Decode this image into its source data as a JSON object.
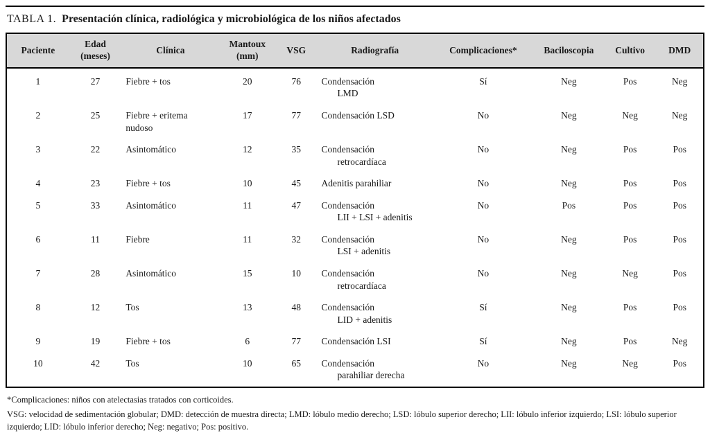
{
  "title": {
    "label": "TABLA 1.",
    "text": "Presentación clínica, radiológica y microbiológica de los niños afectados"
  },
  "table": {
    "columns": [
      "Paciente",
      "Edad\n(meses)",
      "Clínica",
      "Mantoux\n(mm)",
      "VSG",
      "Radiografía",
      "Complicaciones*",
      "Baciloscopia",
      "Cultivo",
      "DMD"
    ],
    "rows": [
      {
        "paciente": "1",
        "edad": "27",
        "clinica": "Fiebre + tos",
        "mantoux": "20",
        "vsg": "76",
        "rx1": "Condensación",
        "rx2": "LMD",
        "compl": "Sí",
        "bacilo": "Neg",
        "cultivo": "Pos",
        "dmd": "Neg"
      },
      {
        "paciente": "2",
        "edad": "25",
        "clinica": "Fiebre + eritema nudoso",
        "mantoux": "17",
        "vsg": "77",
        "rx1": "Condensación LSD",
        "rx2": "",
        "compl": "No",
        "bacilo": "Neg",
        "cultivo": "Neg",
        "dmd": "Neg"
      },
      {
        "paciente": "3",
        "edad": "22",
        "clinica": "Asintomático",
        "mantoux": "12",
        "vsg": "35",
        "rx1": "Condensación",
        "rx2": "retrocardíaca",
        "compl": "No",
        "bacilo": "Neg",
        "cultivo": "Pos",
        "dmd": "Pos"
      },
      {
        "paciente": "4",
        "edad": "23",
        "clinica": "Fiebre + tos",
        "mantoux": "10",
        "vsg": "45",
        "rx1": "Adenitis parahiliar",
        "rx2": "",
        "compl": "No",
        "bacilo": "Neg",
        "cultivo": "Pos",
        "dmd": "Pos"
      },
      {
        "paciente": "5",
        "edad": "33",
        "clinica": "Asintomático",
        "mantoux": "11",
        "vsg": "47",
        "rx1": "Condensación",
        "rx2": "LII + LSI + adenitis",
        "compl": "No",
        "bacilo": "Pos",
        "cultivo": "Pos",
        "dmd": "Pos"
      },
      {
        "paciente": "6",
        "edad": "11",
        "clinica": "Fiebre",
        "mantoux": "11",
        "vsg": "32",
        "rx1": "Condensación",
        "rx2": "LSI + adenitis",
        "compl": "No",
        "bacilo": "Neg",
        "cultivo": "Pos",
        "dmd": "Pos"
      },
      {
        "paciente": "7",
        "edad": "28",
        "clinica": "Asintomático",
        "mantoux": "15",
        "vsg": "10",
        "rx1": "Condensación",
        "rx2": "retrocardíaca",
        "compl": "No",
        "bacilo": "Neg",
        "cultivo": "Neg",
        "dmd": "Pos"
      },
      {
        "paciente": "8",
        "edad": "12",
        "clinica": "Tos",
        "mantoux": "13",
        "vsg": "48",
        "rx1": "Condensación",
        "rx2": "LID + adenitis",
        "compl": "Sí",
        "bacilo": "Neg",
        "cultivo": "Pos",
        "dmd": "Pos"
      },
      {
        "paciente": "9",
        "edad": "19",
        "clinica": "Fiebre + tos",
        "mantoux": "6",
        "vsg": "77",
        "rx1": "Condensación LSI",
        "rx2": "",
        "compl": "Sí",
        "bacilo": "Neg",
        "cultivo": "Pos",
        "dmd": "Neg"
      },
      {
        "paciente": "10",
        "edad": "42",
        "clinica": "Tos",
        "mantoux": "10",
        "vsg": "65",
        "rx1": "Condensación",
        "rx2": "parahiliar derecha",
        "compl": "No",
        "bacilo": "Neg",
        "cultivo": "Neg",
        "dmd": "Pos"
      }
    ]
  },
  "footnotes": [
    "*Complicaciones: niños con atelectasias tratados con corticoides.",
    "VSG: velocidad de sedimentación globular; DMD: detección de muestra directa; LMD: lóbulo medio derecho; LSD: lóbulo superior derecho; LII: lóbulo inferior izquierdo; LSI: lóbulo superior izquierdo; LID: lóbulo inferior derecho; Neg: negativo; Pos: positivo."
  ]
}
